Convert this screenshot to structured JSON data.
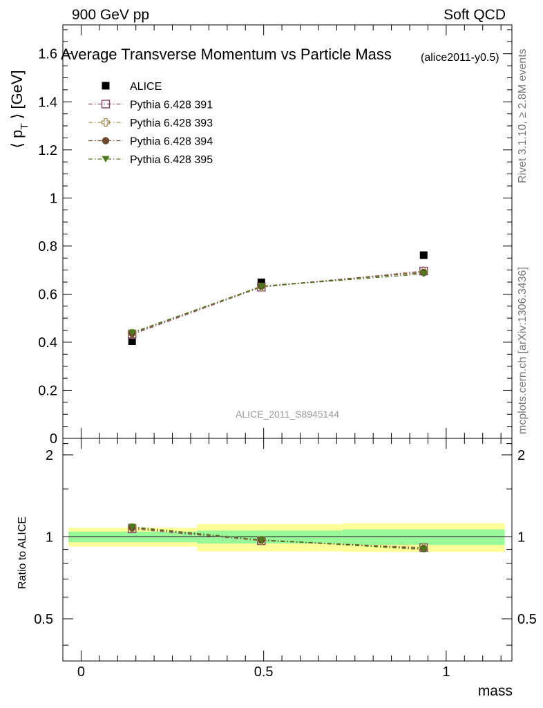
{
  "header": {
    "left": "900 GeV pp",
    "right": "Soft QCD"
  },
  "side_labels": {
    "rivet": "Rivet 3.1.10, ≥ 2.8M events",
    "mcplots": "mcplots.cern.ch [arXiv:1306.3436]"
  },
  "chart_data": [
    {
      "type": "scatter",
      "title": "Average Transverse Momentum vs Particle Mass",
      "subtitle": "(alice2011-y0.5)",
      "watermark": "ALICE_2011_S8945144",
      "xlabel": "mass",
      "ylabel": "⟨ p_T ⟩ [GeV]",
      "xlim": [
        -0.05,
        1.18
      ],
      "ylim": [
        0,
        1.72
      ],
      "yticks": [
        0,
        0.2,
        0.4,
        0.6,
        0.8,
        1,
        1.2,
        1.4,
        1.6
      ],
      "ytick_labels": [
        "0",
        "0.2",
        "0.4",
        "0.6",
        "0.8",
        "1",
        "1.2",
        "1.4",
        "1.6"
      ],
      "legend_position": "top-left",
      "x": [
        0.1396,
        0.4937,
        0.9383
      ],
      "series": [
        {
          "name": "ALICE",
          "values": [
            0.404,
            0.649,
            0.762
          ],
          "marker": "filled-square",
          "color": "#000000"
        },
        {
          "name": "Pythia 6.428 391",
          "values": [
            0.432,
            0.629,
            0.696
          ],
          "marker": "open-square",
          "color": "#8b4a6b"
        },
        {
          "name": "Pythia 6.428 393",
          "values": [
            0.437,
            0.63,
            0.694
          ],
          "marker": "open-cross",
          "color": "#a08a4a"
        },
        {
          "name": "Pythia 6.428 394",
          "values": [
            0.437,
            0.633,
            0.69
          ],
          "marker": "filled-circle",
          "color": "#6b4a2e"
        },
        {
          "name": "Pythia 6.428 395",
          "values": [
            0.44,
            0.632,
            0.684
          ],
          "marker": "filled-triangle-down",
          "color": "#4a7a1a"
        }
      ]
    },
    {
      "type": "line",
      "ylabel": "Ratio to ALICE",
      "xlim": [
        -0.05,
        1.18
      ],
      "ylim": [
        0.35,
        2.3
      ],
      "xticks": [
        0,
        0.5,
        1
      ],
      "xtick_labels": [
        "0",
        "0.5",
        "1"
      ],
      "yticks": [
        0.5,
        1,
        2
      ],
      "ytick_labels": [
        "0.5",
        "1",
        "2"
      ],
      "reference": 1,
      "x": [
        0.1396,
        0.4937,
        0.9383
      ],
      "bins": [
        [
          -0.035,
          0.317
        ],
        [
          0.317,
          0.716
        ],
        [
          0.716,
          1.16
        ]
      ],
      "band_inner": [
        [
          0.955,
          1.045
        ],
        [
          0.945,
          1.055
        ],
        [
          0.935,
          1.065
        ]
      ],
      "band_outer": [
        [
          0.92,
          1.08
        ],
        [
          0.885,
          1.115
        ],
        [
          0.88,
          1.12
        ]
      ],
      "band_colors": {
        "inner": "#99f999",
        "outer": "#ffff99"
      },
      "series": [
        {
          "name": "Pythia 6.428 391",
          "values": [
            1.07,
            0.968,
            0.913
          ],
          "marker": "open-square",
          "color": "#8b4a6b"
        },
        {
          "name": "Pythia 6.428 393",
          "values": [
            1.08,
            0.971,
            0.911
          ],
          "marker": "open-cross",
          "color": "#a08a4a"
        },
        {
          "name": "Pythia 6.428 394",
          "values": [
            1.081,
            0.975,
            0.906
          ],
          "marker": "filled-circle",
          "color": "#6b4a2e"
        },
        {
          "name": "Pythia 6.428 395",
          "values": [
            1.089,
            0.974,
            0.898
          ],
          "marker": "filled-triangle-down",
          "color": "#4a7a1a"
        }
      ]
    }
  ]
}
